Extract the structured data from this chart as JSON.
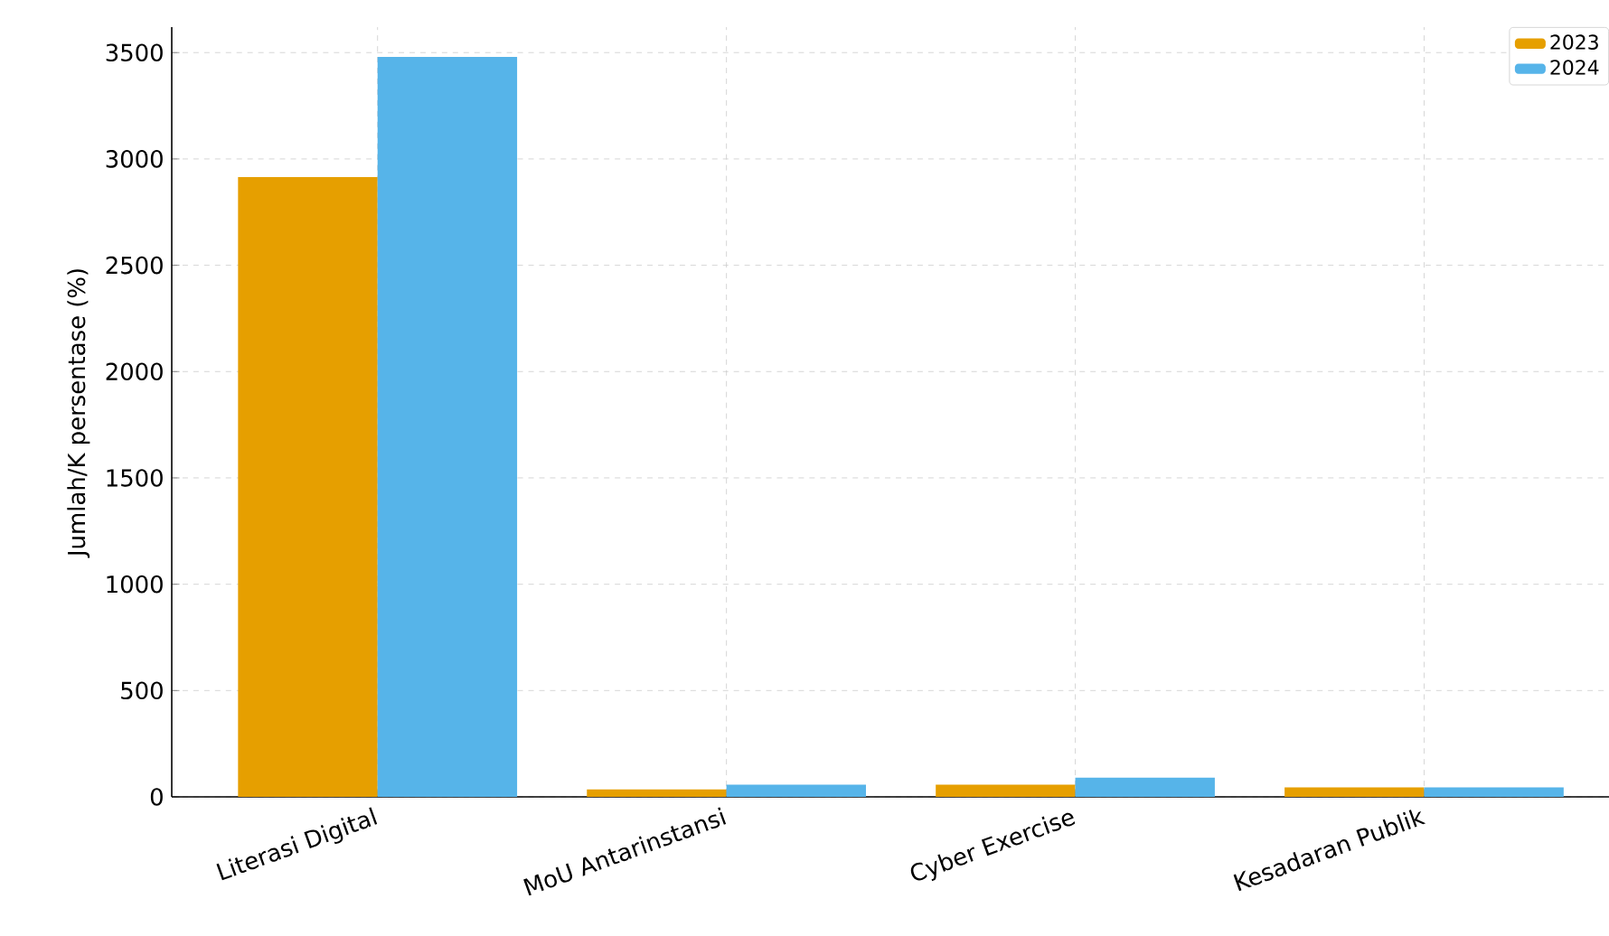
{
  "chart_data": {
    "type": "bar",
    "ylabel": "Jumlah/K persentase (%)",
    "categories": [
      "Literasi Digital",
      "MoU Antarinstansi",
      "Cyber Exercise",
      "Kesadaran Publik"
    ],
    "series": [
      {
        "name": "2023",
        "color": "#e69f00",
        "values": [
          2915,
          35,
          57,
          45
        ]
      },
      {
        "name": "2024",
        "color": "#56b4e9",
        "values": [
          3480,
          57,
          90,
          45
        ]
      }
    ],
    "ylim": [
      0,
      3620
    ],
    "yticks": [
      0,
      500,
      1000,
      1500,
      2000,
      2500,
      3000,
      3500
    ],
    "grid": true,
    "legend": "top right"
  }
}
